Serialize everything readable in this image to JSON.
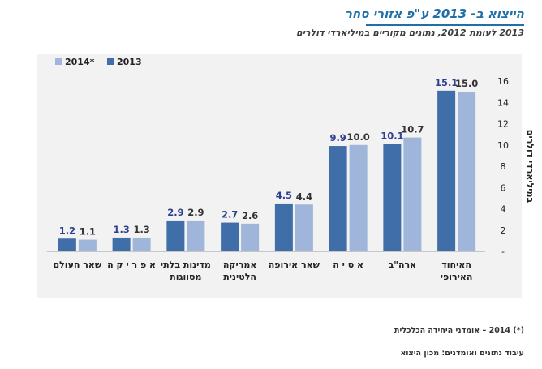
{
  "title": "הייצוא ב- 2013 ע\"פ אזורי סחר",
  "subtitle": "2013 לעומת 2012, נתונים מקוריים במיליארדי דולרים",
  "footnote": "(*) 2014 – אומדני היחידה הכלכלית",
  "source": "עיבוד נתונים ואומדנים: מכון היצוא",
  "colors": {
    "series_2013": "#3f6ea8",
    "series_2014": "#9fb5d9",
    "label_2013": "#2e3f8f",
    "label_2014": "#333333",
    "panel": "#f2f2f2"
  },
  "chart_data": {
    "type": "bar",
    "ylabel": "במיליארדי דולרים",
    "ylim": [
      0,
      16
    ],
    "yticks": [
      0,
      2,
      4,
      6,
      8,
      10,
      12,
      14,
      16
    ],
    "ytick_labels": [
      "-",
      "2",
      "4",
      "6",
      "8",
      "10",
      "12",
      "14",
      "16"
    ],
    "grid": false,
    "legend_position": "top-left",
    "categories": [
      [
        "האיחוד",
        "האירופי"
      ],
      [
        "ארה\"ב"
      ],
      [
        "א ס י ה"
      ],
      [
        "שאר אירופה"
      ],
      [
        "אמריקה",
        "הלטינית"
      ],
      [
        "מדינות בלתי",
        "מסווגות"
      ],
      [
        "א פ ר י ק ה"
      ],
      [
        "שאר העולם"
      ]
    ],
    "series": [
      {
        "name": "2013",
        "values": [
          15.1,
          10.1,
          9.9,
          4.5,
          2.7,
          2.9,
          1.3,
          1.2
        ],
        "labels": [
          "15.1",
          "10.1",
          "9.9",
          "4.5",
          "2.7",
          "2.9",
          "1.3",
          "1.2"
        ]
      },
      {
        "name": "2014*",
        "values": [
          15.0,
          10.7,
          10.0,
          4.4,
          2.6,
          2.9,
          1.3,
          1.1
        ],
        "labels": [
          "15.0",
          "10.7",
          "10.0",
          "4.4",
          "2.6",
          "2.9",
          "1.3",
          "1.1"
        ]
      }
    ]
  }
}
